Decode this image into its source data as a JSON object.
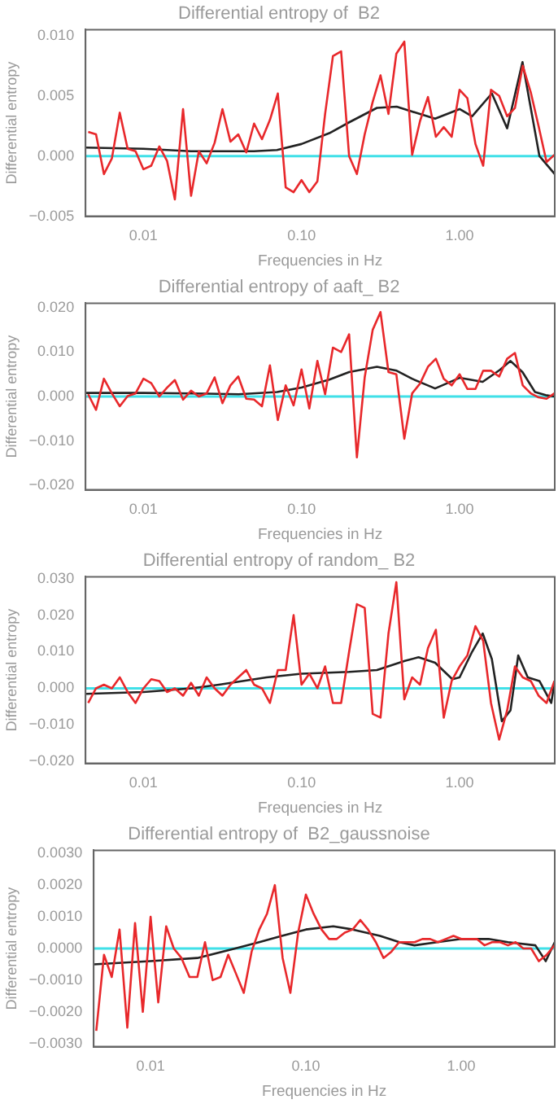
{
  "chart_data": [
    {
      "type": "line",
      "title": "Differential entropy of  B2",
      "xlabel": "Frequencies in Hz",
      "ylabel": "Differential entropy",
      "log": "x",
      "grid": false,
      "legend": false,
      "marker": "none",
      "line_style": "solid",
      "xlim": [
        0.0043,
        4.0
      ],
      "xticks": [
        {
          "value": 0.01,
          "label": "0.01"
        },
        {
          "value": 0.1,
          "label": "0.10"
        },
        {
          "value": 1,
          "label": "1.00"
        }
      ],
      "ylim": [
        -0.005,
        0.0105
      ],
      "yticks": [
        {
          "value": -0.005,
          "label": "−0.005"
        },
        {
          "value": 0,
          "label": "0.000"
        },
        {
          "value": 0.005,
          "label": "0.005"
        },
        {
          "value": 0.01,
          "label": "0.010"
        }
      ],
      "ref_lines": [
        {
          "axis": "y",
          "value": 0,
          "color": "#40e0e8"
        }
      ],
      "x": [
        0.00447,
        0.00501,
        0.00562,
        0.00631,
        0.00708,
        0.00794,
        0.00891,
        0.01,
        0.0112,
        0.0126,
        0.0141,
        0.0158,
        0.0178,
        0.02,
        0.0224,
        0.0251,
        0.0282,
        0.0316,
        0.0355,
        0.0398,
        0.0447,
        0.0501,
        0.0562,
        0.0631,
        0.0708,
        0.0794,
        0.0891,
        0.1,
        0.112,
        0.126,
        0.141,
        0.158,
        0.178,
        0.2,
        0.224,
        0.251,
        0.282,
        0.316,
        0.355,
        0.398,
        0.447,
        0.501,
        0.562,
        0.631,
        0.708,
        0.794,
        0.891,
        1,
        1.12,
        1.26,
        1.41,
        1.58,
        1.78,
        2.0,
        2.24,
        2.51,
        2.82,
        3.16,
        3.55,
        3.98
      ],
      "series": [
        {
          "color": "#e8282b",
          "values": [
            0.002,
            0.0018,
            -0.0015,
            -0.0002,
            0.0036,
            0.0006,
            0.0004,
            -0.0011,
            -0.0008,
            0.0008,
            -0.0004,
            -0.0036,
            0.0039,
            -0.0033,
            0.0004,
            -0.0006,
            0.0011,
            0.0039,
            0.0012,
            0.0018,
            0.0003,
            0.0027,
            0.0014,
            0.003,
            0.0052,
            -0.0026,
            -0.003,
            -0.002,
            -0.003,
            -0.0021,
            0.0035,
            0.0083,
            0.0087,
            0.0,
            -0.0015,
            0.0018,
            0.0045,
            0.0067,
            0.0035,
            0.0085,
            0.0095,
            0.0001,
            0.0029,
            0.0049,
            0.0016,
            0.0024,
            0.0016,
            0.0055,
            0.0048,
            0.001,
            -0.0008,
            0.0055,
            0.005,
            0.0033,
            0.004,
            0.0075,
            0.0053,
            0.0025,
            -0.0005,
            0.0001
          ]
        },
        {
          "color": "#222222",
          "x": [
            0.0043,
            0.01,
            0.02,
            0.05,
            0.07,
            0.1,
            0.15,
            0.2,
            0.3,
            0.4,
            0.5,
            0.7,
            1.0,
            1.2,
            1.6,
            2.0,
            2.5,
            3.2,
            4.0
          ],
          "values": [
            0.0007,
            0.0006,
            0.0004,
            0.0004,
            0.0005,
            0.001,
            0.0019,
            0.0028,
            0.004,
            0.0041,
            0.0037,
            0.0031,
            0.0039,
            0.0033,
            0.0052,
            0.0023,
            0.0078,
            0.0,
            -0.0015
          ]
        }
      ]
    },
    {
      "type": "line",
      "title": "Differential entropy of aaft_ B2",
      "xlabel": "Frequencies in Hz",
      "ylabel": "Differential entropy",
      "log": "x",
      "grid": false,
      "legend": false,
      "marker": "none",
      "line_style": "solid",
      "xlim": [
        0.0043,
        4.0
      ],
      "xticks": [
        {
          "value": 0.01,
          "label": "0.01"
        },
        {
          "value": 0.1,
          "label": "0.10"
        },
        {
          "value": 1,
          "label": "1.00"
        }
      ],
      "ylim": [
        -0.021,
        0.021
      ],
      "yticks": [
        {
          "value": -0.02,
          "label": "−0.020"
        },
        {
          "value": -0.01,
          "label": "−0.010"
        },
        {
          "value": 0,
          "label": "0.000"
        },
        {
          "value": 0.01,
          "label": "0.010"
        },
        {
          "value": 0.02,
          "label": "0.020"
        }
      ],
      "ref_lines": [
        {
          "axis": "y",
          "value": 0,
          "color": "#40e0e8"
        }
      ],
      "x": [
        0.00447,
        0.00501,
        0.00562,
        0.00631,
        0.00708,
        0.00794,
        0.00891,
        0.01,
        0.0112,
        0.0126,
        0.0141,
        0.0158,
        0.0178,
        0.02,
        0.0224,
        0.0251,
        0.0282,
        0.0316,
        0.0355,
        0.0398,
        0.0447,
        0.0501,
        0.0562,
        0.0631,
        0.0708,
        0.0794,
        0.0891,
        0.1,
        0.112,
        0.126,
        0.141,
        0.158,
        0.178,
        0.2,
        0.224,
        0.251,
        0.282,
        0.316,
        0.355,
        0.398,
        0.447,
        0.501,
        0.562,
        0.631,
        0.708,
        0.794,
        0.891,
        1,
        1.12,
        1.26,
        1.41,
        1.58,
        1.78,
        2.0,
        2.24,
        2.51,
        2.82,
        3.16,
        3.55,
        3.98
      ],
      "series": [
        {
          "color": "#e8282b",
          "values": [
            0.0005,
            -0.003,
            0.004,
            0.0007,
            -0.0022,
            0.0001,
            0.0007,
            0.004,
            0.003,
            0.0,
            0.002,
            0.0037,
            -0.0007,
            0.0013,
            0.0,
            0.0007,
            0.0043,
            -0.0015,
            0.0025,
            0.0045,
            -0.0005,
            -0.0007,
            -0.0022,
            0.007,
            -0.0053,
            0.0025,
            -0.002,
            0.0061,
            -0.0027,
            0.008,
            0.0005,
            0.011,
            0.01,
            0.014,
            -0.0137,
            0.0043,
            0.015,
            0.019,
            0.0055,
            0.005,
            -0.0095,
            0.0007,
            0.0029,
            0.0067,
            0.0085,
            0.004,
            0.0025,
            0.005,
            0.0017,
            0.0017,
            0.0058,
            0.0058,
            0.0045,
            0.0085,
            0.0098,
            0.0025,
            0.0007,
            -0.0002,
            -0.0005,
            0.0007
          ]
        },
        {
          "color": "#222222",
          "x": [
            0.0043,
            0.01,
            0.02,
            0.04,
            0.07,
            0.1,
            0.15,
            0.2,
            0.3,
            0.4,
            0.5,
            0.7,
            1.0,
            1.4,
            1.8,
            2.1,
            2.5,
            3.0,
            3.5,
            4.0
          ],
          "values": [
            0.0008,
            0.0008,
            0.0007,
            0.0005,
            0.001,
            0.002,
            0.0038,
            0.0055,
            0.0067,
            0.0058,
            0.004,
            0.0018,
            0.0042,
            0.0033,
            0.006,
            0.008,
            0.0055,
            0.001,
            0.0003,
            0.0
          ]
        }
      ]
    },
    {
      "type": "line",
      "title": "Differential entropy of random_ B2",
      "xlabel": "Frequencies in Hz",
      "ylabel": "Differential entropy",
      "log": "x",
      "grid": false,
      "legend": false,
      "marker": "none",
      "line_style": "solid",
      "xlim": [
        0.0043,
        4.0
      ],
      "xticks": [
        {
          "value": 0.01,
          "label": "0.01"
        },
        {
          "value": 0.1,
          "label": "0.10"
        },
        {
          "value": 1,
          "label": "1.00"
        }
      ],
      "ylim": [
        -0.0205,
        0.0305
      ],
      "yticks": [
        {
          "value": -0.02,
          "label": "−0.020"
        },
        {
          "value": -0.01,
          "label": "−0.010"
        },
        {
          "value": 0,
          "label": "0.000"
        },
        {
          "value": 0.01,
          "label": "0.010"
        },
        {
          "value": 0.02,
          "label": "0.020"
        },
        {
          "value": 0.03,
          "label": "0.030"
        }
      ],
      "ref_lines": [
        {
          "axis": "y",
          "value": 0,
          "color": "#40e0e8"
        }
      ],
      "x": [
        0.00447,
        0.00501,
        0.00562,
        0.00631,
        0.00708,
        0.00794,
        0.00891,
        0.01,
        0.0112,
        0.0126,
        0.0141,
        0.0158,
        0.0178,
        0.02,
        0.0224,
        0.0251,
        0.0282,
        0.0316,
        0.0355,
        0.0398,
        0.0447,
        0.0501,
        0.0562,
        0.0631,
        0.0708,
        0.0794,
        0.0891,
        0.1,
        0.112,
        0.126,
        0.141,
        0.158,
        0.178,
        0.2,
        0.224,
        0.251,
        0.282,
        0.316,
        0.355,
        0.398,
        0.447,
        0.501,
        0.562,
        0.631,
        0.708,
        0.794,
        0.891,
        1,
        1.12,
        1.26,
        1.41,
        1.58,
        1.78,
        2.0,
        2.24,
        2.51,
        2.82,
        3.16,
        3.55,
        3.98
      ],
      "series": [
        {
          "color": "#e8282b",
          "values": [
            -0.004,
            0.0,
            0.001,
            0.0,
            0.003,
            -0.001,
            -0.004,
            0.0,
            0.0025,
            0.002,
            -0.001,
            0.0,
            -0.002,
            0.0015,
            -0.002,
            0.003,
            0.0,
            -0.002,
            0.001,
            0.003,
            0.005,
            0.001,
            0.0,
            -0.004,
            0.005,
            0.005,
            0.02,
            0.001,
            0.004,
            0.0,
            0.006,
            -0.004,
            -0.004,
            0.01,
            0.023,
            0.022,
            -0.007,
            -0.008,
            0.015,
            0.029,
            -0.003,
            0.003,
            0.001,
            0.011,
            0.016,
            -0.008,
            0.002,
            0.006,
            0.009,
            0.017,
            0.013,
            -0.004,
            -0.014,
            -0.006,
            0.006,
            0.003,
            0.002,
            -0.002,
            -0.004,
            0.002
          ]
        },
        {
          "color": "#222222",
          "x": [
            0.0043,
            0.01,
            0.02,
            0.03,
            0.06,
            0.1,
            0.2,
            0.3,
            0.45,
            0.55,
            0.7,
            0.9,
            1.0,
            1.2,
            1.4,
            1.6,
            1.85,
            2.1,
            2.35,
            2.7,
            3.2,
            3.8,
            4.0
          ],
          "values": [
            -0.0015,
            -0.001,
            0,
            0.001,
            0.003,
            0.004,
            0.0045,
            0.005,
            0.0075,
            0.0085,
            0.007,
            0.0025,
            0.003,
            0.01,
            0.015,
            0.008,
            -0.009,
            -0.006,
            0.009,
            0.003,
            0.002,
            -0.004,
            0.002
          ]
        }
      ]
    },
    {
      "type": "line",
      "title": "Differential entropy of  B2_gaussnoise",
      "xlabel": "Frequencies in Hz",
      "ylabel": "Differential entropy",
      "log": "x",
      "grid": false,
      "legend": false,
      "marker": "none",
      "line_style": "solid",
      "xlim": [
        0.0043,
        4.0
      ],
      "xticks": [
        {
          "value": 0.01,
          "label": "0.01"
        },
        {
          "value": 0.1,
          "label": "0.10"
        },
        {
          "value": 1,
          "label": "1.00"
        }
      ],
      "ylim": [
        -0.0031,
        0.0031
      ],
      "yticks": [
        {
          "value": -0.003,
          "label": "−0.0030"
        },
        {
          "value": -0.002,
          "label": "−0.0020"
        },
        {
          "value": -0.001,
          "label": "−0.0010"
        },
        {
          "value": 0,
          "label": "0.0000"
        },
        {
          "value": 0.001,
          "label": "0.0010"
        },
        {
          "value": 0.002,
          "label": "0.0020"
        },
        {
          "value": 0.003,
          "label": "0.0030"
        }
      ],
      "ref_lines": [
        {
          "axis": "y",
          "value": 0,
          "color": "#40e0e8"
        }
      ],
      "x": [
        0.00447,
        0.00501,
        0.00562,
        0.00631,
        0.00708,
        0.00794,
        0.00891,
        0.01,
        0.0112,
        0.0126,
        0.0141,
        0.0158,
        0.0178,
        0.02,
        0.0224,
        0.0251,
        0.0282,
        0.0316,
        0.0355,
        0.0398,
        0.0447,
        0.0501,
        0.0562,
        0.0631,
        0.0708,
        0.0794,
        0.0891,
        0.1,
        0.112,
        0.126,
        0.141,
        0.158,
        0.178,
        0.2,
        0.224,
        0.251,
        0.282,
        0.316,
        0.355,
        0.398,
        0.447,
        0.501,
        0.562,
        0.631,
        0.708,
        0.794,
        0.891,
        1,
        1.12,
        1.26,
        1.41,
        1.58,
        1.78,
        2.0,
        2.24,
        2.51,
        2.82,
        3.16,
        3.55,
        3.98
      ],
      "series": [
        {
          "color": "#e8282b",
          "values": [
            -0.0026,
            -0.0002,
            -0.0009,
            0.0006,
            -0.0025,
            0.0008,
            -0.002,
            0.001,
            -0.0017,
            0.0007,
            0.0,
            -0.0003,
            -0.0009,
            -0.0009,
            0.0002,
            -0.001,
            -0.0009,
            -0.0002,
            -0.0008,
            -0.0014,
            -0.0001,
            0.0006,
            0.0011,
            0.002,
            -0.0003,
            -0.0014,
            0.0005,
            0.0017,
            0.0011,
            0.0006,
            0.0003,
            0.0003,
            0.0005,
            0.0006,
            0.0009,
            0.0006,
            0.0002,
            -0.0003,
            -0.0001,
            0.0002,
            0.0002,
            0.0002,
            0.0003,
            0.0003,
            0.0002,
            0.0003,
            0.0004,
            0.0003,
            0.0003,
            0.0003,
            0.0001,
            0.0002,
            0.0002,
            0.0001,
            0.0002,
            0.0,
            0.0,
            -0.0004,
            -0.0002,
            0.0001
          ]
        },
        {
          "color": "#222222",
          "x": [
            0.0043,
            0.01,
            0.02,
            0.035,
            0.05,
            0.07,
            0.1,
            0.15,
            0.2,
            0.3,
            0.4,
            0.5,
            0.7,
            1.0,
            1.5,
            2.0,
            3.0,
            3.5,
            4.0
          ],
          "values": [
            -0.0005,
            -0.0004,
            -0.0003,
            0.0,
            0.0002,
            0.0004,
            0.0006,
            0.0007,
            0.0006,
            0.0004,
            0.0002,
            0.0001,
            0.0002,
            0.0003,
            0.0003,
            0.0002,
            0.0001,
            -0.0004,
            0.0002
          ]
        }
      ]
    }
  ]
}
